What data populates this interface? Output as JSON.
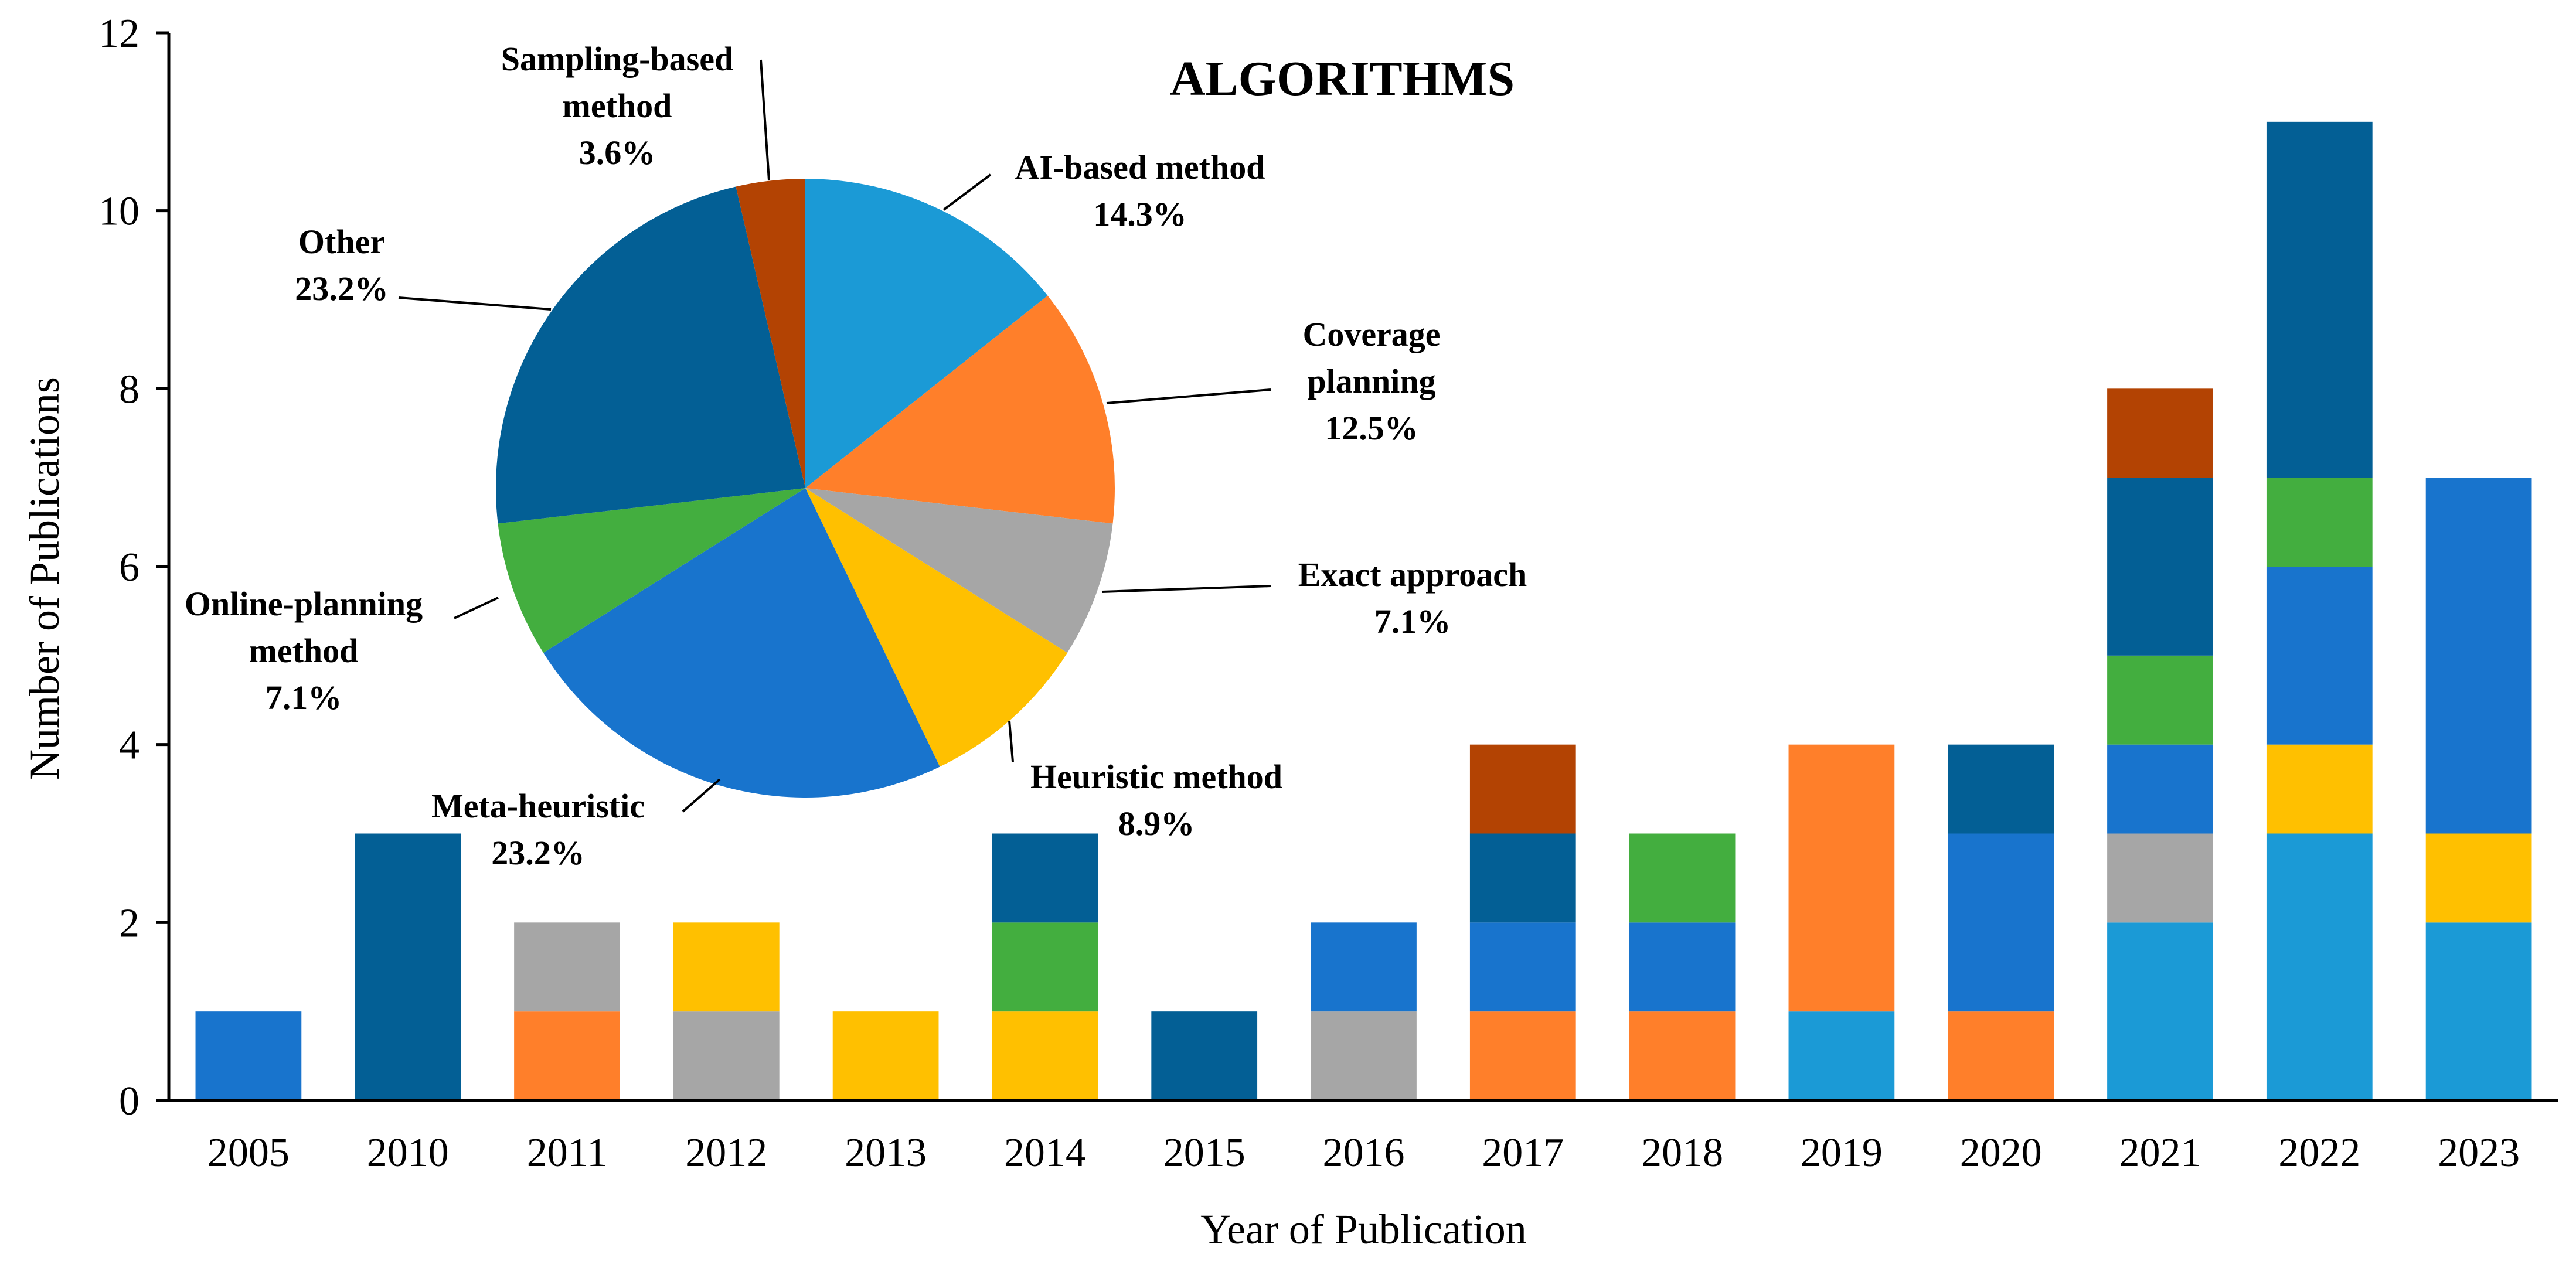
{
  "chart_data": {
    "type": "bar",
    "stacked": true,
    "xlabel": "Year of Publication",
    "ylabel": "Number of Publications",
    "ylim": [
      0,
      12
    ],
    "yticks": [
      0,
      2,
      4,
      6,
      8,
      10,
      12
    ],
    "categories": [
      "2005",
      "2010",
      "2011",
      "2012",
      "2013",
      "2014",
      "2015",
      "2016",
      "2017",
      "2018",
      "2019",
      "2020",
      "2021",
      "2022",
      "2023"
    ],
    "series": [
      {
        "key": "ai",
        "color": "#1B9AD6",
        "values": [
          0,
          0,
          0,
          0,
          0,
          0,
          0,
          0,
          0,
          0,
          1,
          0,
          2,
          3,
          2
        ]
      },
      {
        "key": "coverage",
        "color": "#FF7F2A",
        "values": [
          0,
          0,
          1,
          0,
          0,
          0,
          0,
          0,
          1,
          1,
          3,
          1,
          0,
          0,
          0
        ]
      },
      {
        "key": "exact",
        "color": "#A6A6A6",
        "values": [
          0,
          0,
          1,
          1,
          0,
          0,
          0,
          1,
          0,
          0,
          0,
          0,
          1,
          0,
          0
        ]
      },
      {
        "key": "heuristic",
        "color": "#FFC000",
        "values": [
          0,
          0,
          0,
          1,
          1,
          1,
          0,
          0,
          0,
          0,
          0,
          0,
          0,
          1,
          1
        ]
      },
      {
        "key": "meta",
        "color": "#1874CD",
        "values": [
          1,
          0,
          0,
          0,
          0,
          0,
          0,
          1,
          1,
          1,
          0,
          2,
          1,
          2,
          4
        ]
      },
      {
        "key": "online",
        "color": "#43AE3F",
        "values": [
          0,
          0,
          0,
          0,
          0,
          1,
          0,
          0,
          0,
          1,
          0,
          0,
          1,
          1,
          0
        ]
      },
      {
        "key": "other",
        "color": "#035F95",
        "values": [
          0,
          3,
          0,
          0,
          0,
          1,
          1,
          0,
          1,
          0,
          0,
          1,
          2,
          4,
          0
        ]
      },
      {
        "key": "sampling",
        "color": "#B34303",
        "values": [
          0,
          0,
          0,
          0,
          0,
          0,
          0,
          0,
          1,
          0,
          0,
          0,
          1,
          0,
          0
        ]
      }
    ],
    "inset_pie": {
      "type": "pie",
      "title": "ALGORITHMS",
      "slices": [
        {
          "key": "ai",
          "lines": [
            "AI-based method"
          ],
          "percent_label": "14.3%",
          "value": 14.3,
          "color": "#1B9AD6"
        },
        {
          "key": "coverage",
          "lines": [
            "Coverage",
            "planning"
          ],
          "percent_label": "12.5%",
          "value": 12.5,
          "color": "#FF7F2A"
        },
        {
          "key": "exact",
          "lines": [
            "Exact approach"
          ],
          "percent_label": "7.1%",
          "value": 7.1,
          "color": "#A6A6A6"
        },
        {
          "key": "heuristic",
          "lines": [
            "Heuristic method"
          ],
          "percent_label": "8.9%",
          "value": 8.9,
          "color": "#FFC000"
        },
        {
          "key": "meta",
          "lines": [
            "Meta-heuristic"
          ],
          "percent_label": "23.2%",
          "value": 23.2,
          "color": "#1874CD"
        },
        {
          "key": "online",
          "lines": [
            "Online-planning",
            "method"
          ],
          "percent_label": "7.1%",
          "value": 7.1,
          "color": "#43AE3F"
        },
        {
          "key": "other",
          "lines": [
            "Other"
          ],
          "percent_label": "23.2%",
          "value": 23.2,
          "color": "#035F95"
        },
        {
          "key": "sampling",
          "lines": [
            "Sampling-based",
            "method"
          ],
          "percent_label": "3.6%",
          "value": 3.6,
          "color": "#B34303"
        }
      ]
    }
  }
}
